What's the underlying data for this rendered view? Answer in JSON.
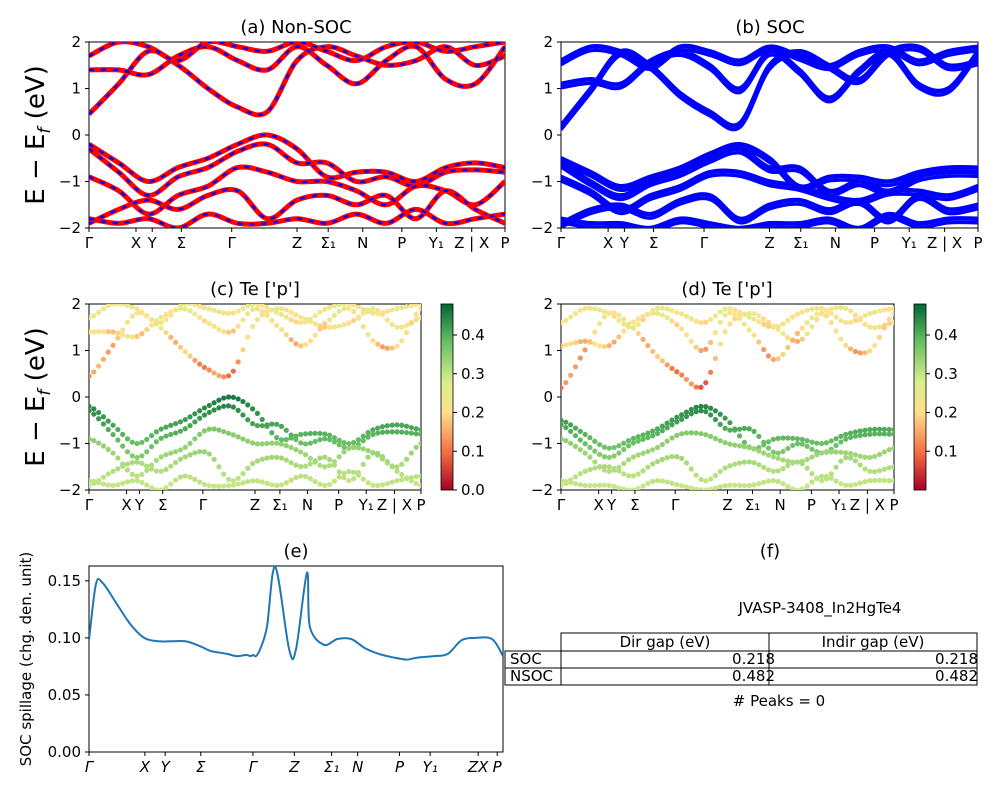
{
  "figure": {
    "ylabel_band": "E − E",
    "ylabel_sub": "f",
    "ylabel_unit": " (eV)"
  },
  "panels": {
    "a": {
      "title": "(a) Non-SOC"
    },
    "b": {
      "title": "(b) SOC"
    },
    "c": {
      "title": "(c)  Te ['p']"
    },
    "d": {
      "title": "(d) Te ['p']"
    },
    "e": {
      "title": "(e)",
      "ylabel": "SOC spillage (chg. den. unit)"
    },
    "f": {
      "title": "(f)"
    }
  },
  "info": {
    "material_id": "JVASP-3408_In2HgTe4",
    "table_header": [
      "",
      "Dir gap (eV)",
      "Indir gap (eV)"
    ],
    "table_rows": [
      [
        "SOC",
        "0.218",
        "0.218"
      ],
      [
        "NSOC",
        "0.482",
        "0.482"
      ]
    ],
    "peaks_text": "# Peaks = 0"
  },
  "colors": {
    "nonsoc_line": "#ff0000",
    "nonsoc_dash": "#0000ff",
    "soc_line": "#0000ff",
    "spillage_line": "#1f77b4",
    "colormap": [
      "#a50026",
      "#f46d43",
      "#fee08b",
      "#d9ef8b",
      "#66bd63",
      "#006837"
    ]
  },
  "chart_data": [
    {
      "panel": "a",
      "type": "line",
      "title": "(a) Non-SOC",
      "ylabel": "E − E_f (eV)",
      "ylim": [
        -2,
        2
      ],
      "yticks": [
        -2,
        -1,
        0,
        1,
        2
      ],
      "xticks": [
        "Γ",
        "X",
        "Y",
        "Σ",
        "Γ",
        "Z",
        "Σ₁",
        "N",
        "P",
        "Y₁",
        "Z | X",
        "P"
      ],
      "series": [
        {
          "values": [
            0.45,
            1.1,
            1.8,
            1.5,
            1.0,
            0.6,
            0.5,
            1.6,
            1.9,
            1.7,
            1.5,
            1.6,
            1.9,
            1.5,
            1.7
          ]
        },
        {
          "values": [
            1.4,
            1.4,
            1.3,
            1.7,
            1.9,
            1.6,
            1.4,
            1.9,
            1.5,
            1.1,
            1.6,
            1.9,
            1.2,
            1.1,
            1.9
          ]
        },
        {
          "values": [
            1.7,
            2.0,
            1.9,
            1.6,
            2.0,
            1.9,
            1.8,
            2.0,
            1.8,
            1.6,
            1.9,
            2.0,
            1.8,
            1.9,
            2.0
          ]
        },
        {
          "values": [
            -0.2,
            -0.6,
            -1.0,
            -0.7,
            -0.5,
            -0.2,
            0.0,
            -0.3,
            -0.9,
            -0.8,
            -0.8,
            -1.0,
            -0.7,
            -0.6,
            -0.7
          ]
        },
        {
          "values": [
            -0.3,
            -0.8,
            -1.3,
            -0.9,
            -0.7,
            -0.35,
            -0.2,
            -0.6,
            -0.6,
            -1.0,
            -0.9,
            -1.1,
            -0.8,
            -0.75,
            -0.8
          ]
        },
        {
          "values": [
            -0.9,
            -1.2,
            -1.7,
            -1.3,
            -1.1,
            -0.7,
            -0.8,
            -1.0,
            -1.0,
            -1.2,
            -1.5,
            -1.1,
            -1.2,
            -1.5,
            -1.0
          ]
        },
        {
          "values": [
            -1.9,
            -1.6,
            -1.4,
            -1.6,
            -1.3,
            -1.2,
            -1.8,
            -1.4,
            -1.3,
            -1.5,
            -1.3,
            -1.8,
            -1.2,
            -1.6,
            -1.9
          ]
        },
        {
          "values": [
            -1.8,
            -1.9,
            -1.8,
            -2.0,
            -1.7,
            -1.9,
            -1.9,
            -1.8,
            -1.9,
            -1.7,
            -1.9,
            -1.6,
            -1.9,
            -1.8,
            -1.7
          ]
        }
      ]
    },
    {
      "panel": "b",
      "type": "line",
      "title": "(b) SOC",
      "ylim": [
        -2,
        2
      ],
      "yticks": [
        -2,
        -1,
        0,
        1,
        2
      ],
      "xticks": [
        "Γ",
        "X",
        "Y",
        "Σ",
        "Γ",
        "Z",
        "Σ₁",
        "N",
        "P",
        "Y₁",
        "Z | X",
        "P"
      ],
      "series": [
        {
          "values": [
            0.2,
            1.0,
            1.8,
            1.5,
            0.9,
            0.5,
            0.25,
            1.5,
            1.8,
            1.5,
            1.2,
            1.8,
            1.9,
            1.5,
            1.6
          ]
        },
        {
          "values": [
            1.1,
            1.2,
            1.1,
            1.6,
            1.8,
            1.5,
            1.0,
            1.8,
            1.4,
            0.8,
            1.4,
            1.8,
            1.1,
            1.0,
            1.8
          ]
        },
        {
          "values": [
            1.6,
            1.9,
            1.8,
            1.5,
            1.9,
            1.8,
            1.6,
            1.9,
            1.7,
            1.5,
            1.8,
            1.9,
            1.6,
            1.8,
            1.9
          ]
        },
        {
          "values": [
            -0.5,
            -0.8,
            -1.1,
            -0.9,
            -0.7,
            -0.4,
            -0.2,
            -0.5,
            -1.1,
            -0.9,
            -0.9,
            -1.0,
            -0.8,
            -0.7,
            -0.7
          ]
        },
        {
          "values": [
            -0.6,
            -1.0,
            -1.3,
            -1.0,
            -0.8,
            -0.5,
            -0.3,
            -0.7,
            -0.7,
            -1.2,
            -1.0,
            -1.2,
            -0.9,
            -0.8,
            -0.8
          ]
        },
        {
          "values": [
            -0.9,
            -1.2,
            -1.6,
            -1.3,
            -1.1,
            -0.8,
            -0.8,
            -1.0,
            -1.1,
            -1.3,
            -1.4,
            -1.2,
            -1.2,
            -1.3,
            -1.1
          ]
        },
        {
          "values": [
            -1.9,
            -1.6,
            -1.5,
            -1.7,
            -1.4,
            -1.3,
            -1.8,
            -1.5,
            -1.4,
            -1.6,
            -1.4,
            -1.8,
            -1.3,
            -1.6,
            -1.5
          ]
        },
        {
          "values": [
            -1.8,
            -1.9,
            -1.9,
            -2.0,
            -1.8,
            -1.9,
            -2.0,
            -1.9,
            -1.9,
            -1.8,
            -2.0,
            -1.7,
            -1.9,
            -1.8,
            -1.8
          ]
        }
      ]
    },
    {
      "panel": "c",
      "type": "scatter",
      "title": "(c)  Te ['p']",
      "ylim": [
        -2,
        2
      ],
      "yticks": [
        -2,
        -1,
        0,
        1,
        2
      ],
      "xticks": [
        "Γ",
        "X",
        "Y",
        "Σ",
        "Γ",
        "Z",
        "Σ₁",
        "N",
        "P",
        "Y₁",
        "Z | X",
        "P"
      ],
      "colorbar": {
        "range": [
          0.0,
          0.48
        ],
        "ticks": [
          "0.0",
          "0.1",
          "0.2",
          "0.3",
          "0.4"
        ]
      }
    },
    {
      "panel": "d",
      "type": "scatter",
      "title": "(d) Te ['p']",
      "ylim": [
        -2,
        2
      ],
      "yticks": [
        -2,
        -1,
        0,
        1,
        2
      ],
      "xticks": [
        "Γ",
        "X",
        "Y",
        "Σ",
        "Γ",
        "Z",
        "Σ₁",
        "N",
        "P",
        "Y₁",
        "Z | X",
        "P"
      ],
      "colorbar": {
        "range": [
          0.0,
          0.48
        ],
        "ticks": [
          "0.1",
          "0.2",
          "0.3",
          "0.4"
        ]
      }
    },
    {
      "panel": "e",
      "type": "line",
      "title": "(e)",
      "ylabel": "SOC spillage (chg. den. unit)",
      "ylim": [
        0,
        0.163
      ],
      "yticks": [
        "0.00",
        "0.05",
        "0.10",
        "0.15"
      ],
      "xticks": [
        "Γ",
        "X",
        "Y",
        "Σ",
        "Γ",
        "Z",
        "Σ₁",
        "N",
        "P",
        "Y₁",
        "ZX",
        "P"
      ],
      "x": [
        0,
        0.5,
        1,
        2,
        3,
        4,
        5,
        6,
        7,
        8,
        8.7,
        9,
        10,
        10.7,
        11.4,
        11.7,
        11.9,
        12.1,
        12.4,
        12.9,
        13.5,
        14.5,
        15,
        15.8,
        16,
        17,
        18,
        19,
        20,
        21,
        22,
        23,
        23.5,
        24,
        25,
        26,
        27,
        28,
        29,
        29.5,
        30
      ],
      "values": [
        0.098,
        0.147,
        0.148,
        0.13,
        0.112,
        0.1,
        0.097,
        0.097,
        0.097,
        0.093,
        0.089,
        0.088,
        0.086,
        0.084,
        0.085,
        0.084,
        0.085,
        0.084,
        0.09,
        0.11,
        0.162,
        0.09,
        0.09,
        0.157,
        0.11,
        0.094,
        0.099,
        0.099,
        0.091,
        0.086,
        0.083,
        0.081,
        0.082,
        0.083,
        0.084,
        0.086,
        0.098,
        0.1,
        0.1,
        0.095,
        0.084
      ]
    }
  ]
}
